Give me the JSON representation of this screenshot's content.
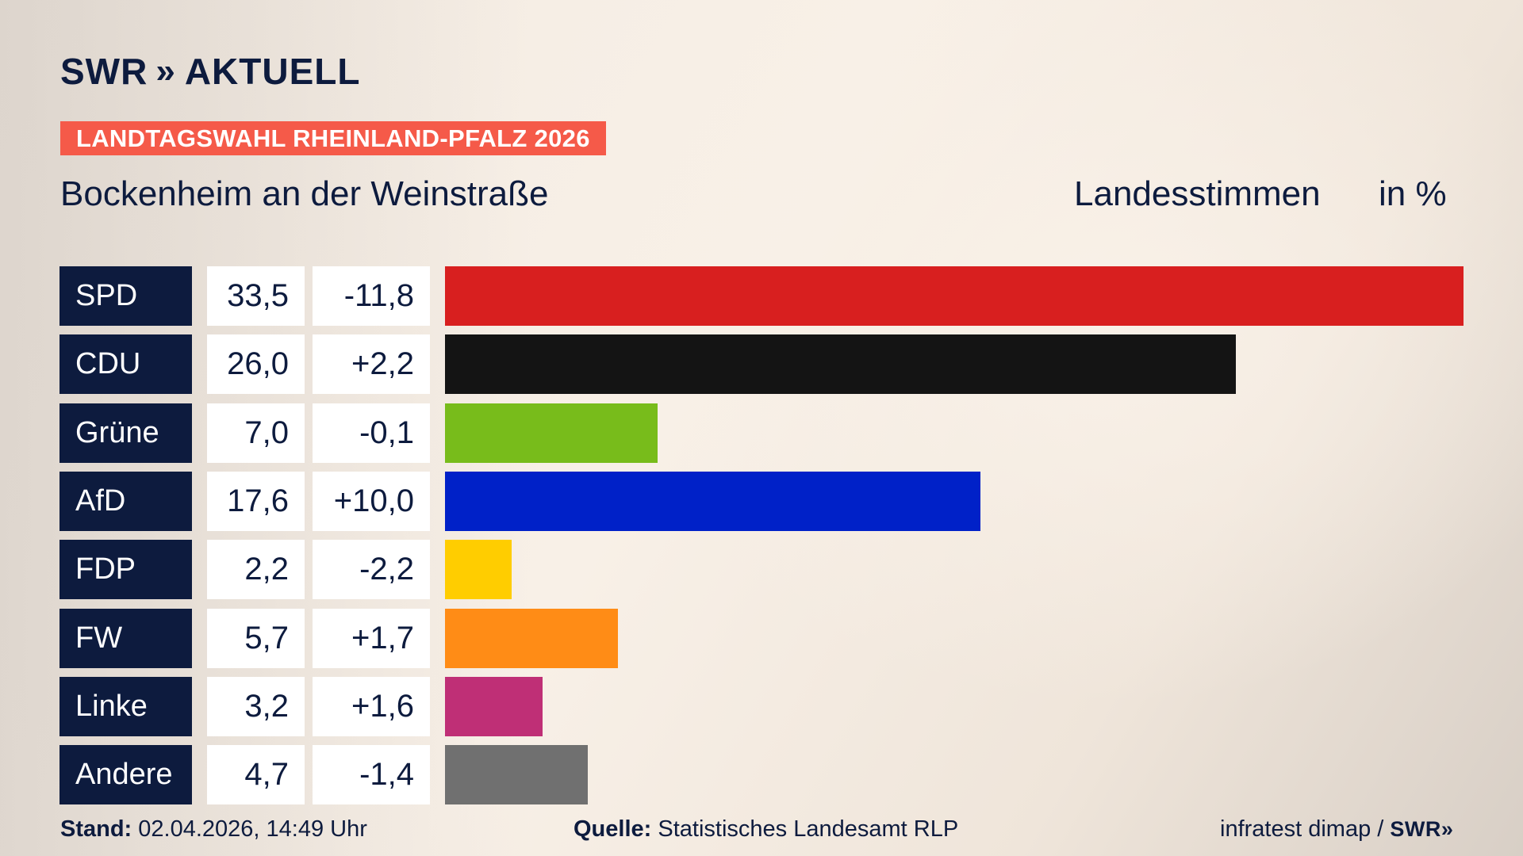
{
  "header": {
    "brand_prefix": "SWR",
    "brand_chevrons": "»",
    "brand_suffix": "AKTUELL",
    "topic": "LANDTAGSWAHL RHEINLAND-PFALZ 2026",
    "region": "Bockenheim an der Weinstraße",
    "vote_type": "Landesstimmen",
    "unit": "in %"
  },
  "footer": {
    "stand_label": "Stand:",
    "stand_value": "02.04.2026, 14:49 Uhr",
    "source_label": "Quelle:",
    "source_value": "Statistisches Landesamt RLP",
    "credit": "infratest dimap /",
    "credit_brand": "SWR",
    "credit_chevrons": "»"
  },
  "colors": {
    "navy": "#0d1b3e",
    "topic_bg": "#f55a49"
  },
  "chart_data": {
    "type": "bar",
    "orientation": "horizontal",
    "categories": [
      "SPD",
      "CDU",
      "Grüne",
      "AfD",
      "FDP",
      "FW",
      "Linke",
      "Andere"
    ],
    "values": [
      33.5,
      26.0,
      7.0,
      17.6,
      2.2,
      5.7,
      3.2,
      4.7
    ],
    "value_labels": [
      "33,5",
      "26,0",
      "7,0",
      "17,6",
      "2,2",
      "5,7",
      "3,2",
      "4,7"
    ],
    "differences": [
      -11.8,
      2.2,
      -0.1,
      10.0,
      -2.2,
      1.7,
      1.6,
      -1.4
    ],
    "difference_labels": [
      "-11,8",
      "+2,2",
      "-0,1",
      "+10,0",
      "-2,2",
      "+1,7",
      "+1,6",
      "-1,4"
    ],
    "bar_colors": [
      "#d81f1f",
      "#141414",
      "#78bc1b",
      "#0021c8",
      "#ffcd00",
      "#ff8c16",
      "#bf2f76",
      "#707070"
    ],
    "xlim": [
      0,
      33.5
    ],
    "grid": false,
    "legend": "none"
  }
}
